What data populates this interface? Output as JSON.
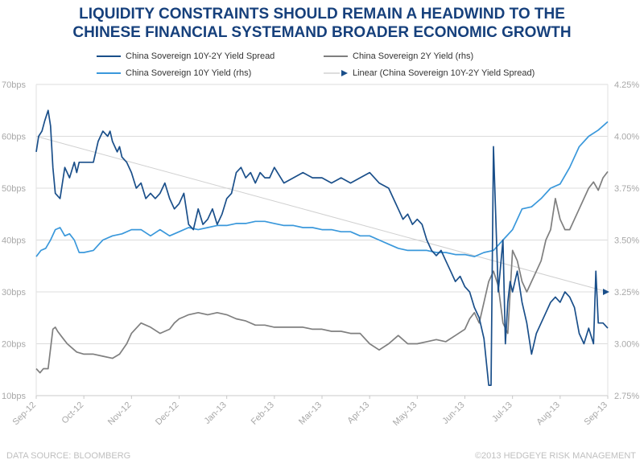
{
  "title_lines": [
    "LIQUIDITY CONSTRAINTS SHOULD REMAIN A HEADWIND TO THE",
    "CHINESE FINANCIAL SYSTEMAND BROADER ECONOMIC GROWTH"
  ],
  "footer": {
    "source": "DATA SOURCE: BLOOMBERG",
    "copyright": "©2013 HEDGEYE RISK MANAGEMENT"
  },
  "colors": {
    "title": "#16407c",
    "spread": "#1a4f8a",
    "yield_10y": "#3a98db",
    "yield_2y": "#7f7f7f",
    "linear": "#d0d0d0",
    "grid": "#dcdcdc",
    "axis_text": "#a8a8a8"
  },
  "chart_data": {
    "type": "line",
    "legend": [
      {
        "label": "China Sovereign 10Y-2Y Yield Spread",
        "series": "spread"
      },
      {
        "label": "China Sovereign 2Y Yield (rhs)",
        "series": "yield_2y"
      },
      {
        "label": "China Sovereign 10Y Yield (rhs)",
        "series": "yield_10y"
      },
      {
        "label": "Linear (China Sovereign 10Y-2Y Yield Spread)",
        "series": "linear"
      }
    ],
    "legend_position": "top",
    "grid": true,
    "y_left": {
      "min": 10,
      "max": 70,
      "step": 10,
      "ticks": [
        "10bps",
        "20bps",
        "30bps",
        "40bps",
        "50bps",
        "60bps",
        "70bps"
      ]
    },
    "y_right": {
      "min": 2.75,
      "max": 4.25,
      "step": 0.25,
      "ticks": [
        "2.75%",
        "3.00%",
        "3.25%",
        "3.50%",
        "3.75%",
        "4.00%",
        "4.25%"
      ]
    },
    "x_labels": [
      "Sep-12",
      "Oct-12",
      "Nov-12",
      "Dec-12",
      "Jan-13",
      "Feb-13",
      "Mar-13",
      "Apr-13",
      "May-13",
      "Jun-13",
      "Jul-13",
      "Aug-13",
      "Sep-13"
    ],
    "x_range": [
      0,
      12
    ],
    "series": [
      {
        "key": "spread",
        "name": "China Sovereign 10Y-2Y Yield Spread",
        "axis": "left",
        "x": [
          0,
          0.05,
          0.12,
          0.18,
          0.25,
          0.3,
          0.35,
          0.4,
          0.5,
          0.6,
          0.7,
          0.8,
          0.85,
          0.9,
          1.0,
          1.1,
          1.2,
          1.3,
          1.4,
          1.5,
          1.55,
          1.6,
          1.7,
          1.75,
          1.8,
          1.9,
          2.0,
          2.1,
          2.2,
          2.3,
          2.4,
          2.5,
          2.6,
          2.7,
          2.8,
          2.9,
          3.0,
          3.1,
          3.2,
          3.3,
          3.4,
          3.5,
          3.6,
          3.7,
          3.8,
          3.9,
          4.0,
          4.1,
          4.2,
          4.3,
          4.4,
          4.5,
          4.6,
          4.7,
          4.8,
          4.9,
          5.0,
          5.2,
          5.4,
          5.6,
          5.8,
          6.0,
          6.2,
          6.4,
          6.6,
          6.8,
          7.0,
          7.2,
          7.4,
          7.6,
          7.7,
          7.8,
          7.9,
          8.0,
          8.1,
          8.2,
          8.3,
          8.4,
          8.5,
          8.6,
          8.7,
          8.8,
          8.9,
          9.0,
          9.1,
          9.2,
          9.3,
          9.4,
          9.5,
          9.55,
          9.6,
          9.7,
          9.8,
          9.85,
          9.9,
          9.95,
          10.0,
          10.1,
          10.2,
          10.3,
          10.4,
          10.5,
          10.6,
          10.7,
          10.8,
          10.9,
          11.0,
          11.1,
          11.2,
          11.3,
          11.4,
          11.5,
          11.6,
          11.7,
          11.75,
          11.8,
          11.9,
          12.0
        ],
        "values": [
          57,
          60,
          61,
          63,
          65,
          62,
          54,
          49,
          48,
          54,
          52,
          55,
          53,
          55,
          55,
          55,
          55,
          59,
          61,
          60,
          61,
          59,
          57,
          58,
          56,
          55,
          53,
          50,
          51,
          48,
          49,
          48,
          49,
          51,
          48,
          46,
          47,
          49,
          43,
          42,
          46,
          43,
          44,
          46,
          43,
          45,
          48,
          49,
          53,
          54,
          52,
          53,
          51,
          53,
          52,
          52,
          54,
          51,
          52,
          53,
          52,
          52,
          51,
          52,
          51,
          52,
          53,
          51,
          50,
          46,
          44,
          45,
          43,
          44,
          43,
          40,
          38,
          37,
          38,
          36,
          34,
          32,
          33,
          31,
          30,
          27,
          25,
          21,
          12,
          12,
          58,
          30,
          40,
          20,
          28,
          32,
          30,
          34,
          28,
          24,
          18,
          22,
          24,
          26,
          28,
          29,
          28,
          30,
          29,
          27,
          22,
          20,
          23,
          20,
          34,
          24,
          24,
          23
        ]
      },
      {
        "key": "yield_2y",
        "name": "China Sovereign 2Y Yield (rhs)",
        "axis": "right",
        "x": [
          0,
          0.08,
          0.15,
          0.25,
          0.35,
          0.4,
          0.45,
          0.55,
          0.65,
          0.75,
          0.85,
          1.0,
          1.2,
          1.4,
          1.6,
          1.75,
          1.9,
          2.0,
          2.2,
          2.4,
          2.6,
          2.8,
          2.9,
          3.0,
          3.1,
          3.2,
          3.4,
          3.6,
          3.8,
          4.0,
          4.2,
          4.4,
          4.6,
          4.8,
          5.0,
          5.2,
          5.4,
          5.6,
          5.8,
          6.0,
          6.2,
          6.4,
          6.6,
          6.8,
          7.0,
          7.2,
          7.4,
          7.6,
          7.8,
          8.0,
          8.2,
          8.4,
          8.6,
          8.8,
          9.0,
          9.1,
          9.2,
          9.3,
          9.4,
          9.5,
          9.6,
          9.7,
          9.8,
          9.9,
          10.0,
          10.1,
          10.2,
          10.3,
          10.4,
          10.5,
          10.6,
          10.7,
          10.8,
          10.9,
          11.0,
          11.1,
          11.2,
          11.3,
          11.4,
          11.5,
          11.6,
          11.7,
          11.8,
          11.9,
          12.0
        ],
        "values": [
          2.88,
          2.86,
          2.88,
          2.88,
          3.07,
          3.08,
          3.06,
          3.03,
          3.0,
          2.98,
          2.96,
          2.95,
          2.95,
          2.94,
          2.93,
          2.95,
          3.0,
          3.05,
          3.1,
          3.08,
          3.05,
          3.07,
          3.1,
          3.12,
          3.13,
          3.14,
          3.15,
          3.14,
          3.15,
          3.14,
          3.12,
          3.11,
          3.09,
          3.09,
          3.08,
          3.08,
          3.08,
          3.08,
          3.07,
          3.07,
          3.06,
          3.06,
          3.05,
          3.05,
          3.0,
          2.97,
          3.0,
          3.04,
          3.0,
          3.0,
          3.01,
          3.02,
          3.01,
          3.04,
          3.07,
          3.12,
          3.15,
          3.1,
          3.2,
          3.3,
          3.35,
          3.28,
          3.1,
          3.05,
          3.45,
          3.4,
          3.3,
          3.25,
          3.3,
          3.35,
          3.4,
          3.5,
          3.55,
          3.7,
          3.6,
          3.55,
          3.55,
          3.6,
          3.65,
          3.7,
          3.75,
          3.78,
          3.74,
          3.8,
          3.83
        ]
      },
      {
        "key": "yield_10y",
        "name": "China Sovereign 10Y Yield (rhs)",
        "axis": "right",
        "x": [
          0,
          0.1,
          0.2,
          0.3,
          0.4,
          0.5,
          0.6,
          0.7,
          0.8,
          0.9,
          1.0,
          1.2,
          1.4,
          1.6,
          1.8,
          2.0,
          2.2,
          2.4,
          2.6,
          2.8,
          3.0,
          3.2,
          3.4,
          3.6,
          3.8,
          4.0,
          4.2,
          4.4,
          4.6,
          4.8,
          5.0,
          5.2,
          5.4,
          5.6,
          5.8,
          6.0,
          6.2,
          6.4,
          6.6,
          6.8,
          7.0,
          7.2,
          7.4,
          7.6,
          7.8,
          8.0,
          8.2,
          8.4,
          8.6,
          8.8,
          9.0,
          9.2,
          9.4,
          9.6,
          9.8,
          10.0,
          10.2,
          10.4,
          10.6,
          10.8,
          11.0,
          11.2,
          11.4,
          11.6,
          11.8,
          12.0
        ],
        "values": [
          3.42,
          3.45,
          3.46,
          3.5,
          3.55,
          3.56,
          3.52,
          3.53,
          3.5,
          3.44,
          3.44,
          3.45,
          3.5,
          3.52,
          3.53,
          3.55,
          3.55,
          3.52,
          3.55,
          3.52,
          3.54,
          3.56,
          3.55,
          3.56,
          3.57,
          3.57,
          3.58,
          3.58,
          3.59,
          3.59,
          3.58,
          3.57,
          3.57,
          3.56,
          3.56,
          3.55,
          3.55,
          3.54,
          3.54,
          3.52,
          3.52,
          3.5,
          3.48,
          3.46,
          3.45,
          3.45,
          3.45,
          3.44,
          3.44,
          3.43,
          3.43,
          3.42,
          3.44,
          3.45,
          3.5,
          3.55,
          3.65,
          3.66,
          3.7,
          3.75,
          3.77,
          3.85,
          3.95,
          4.0,
          4.03,
          4.07
        ]
      },
      {
        "key": "linear",
        "name": "Linear (China Sovereign 10Y-2Y Yield Spread)",
        "axis": "left",
        "x": [
          0,
          12
        ],
        "values": [
          60,
          30
        ]
      }
    ]
  }
}
